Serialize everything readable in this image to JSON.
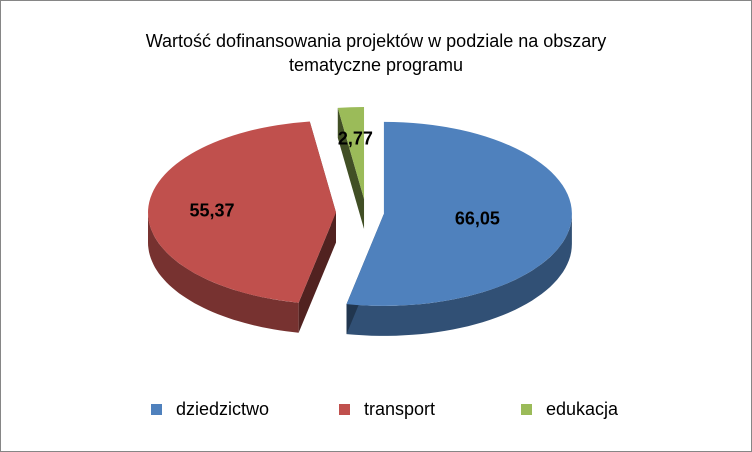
{
  "chart_data": {
    "type": "pie",
    "title_line1": "Wartość dofinansowania projektów w podziale na obszary",
    "title_line2": "tematyczne programu",
    "categories": [
      "dziedzictwo",
      "transport",
      "edukacja"
    ],
    "values": [
      66.05,
      55.37,
      2.77
    ],
    "data_labels": [
      "66,05",
      "55,37",
      "2,77"
    ],
    "colors": [
      "#4f81bd",
      "#c0504d",
      "#9bbb59"
    ],
    "legend_position": "bottom",
    "style": "3d-exploded"
  }
}
